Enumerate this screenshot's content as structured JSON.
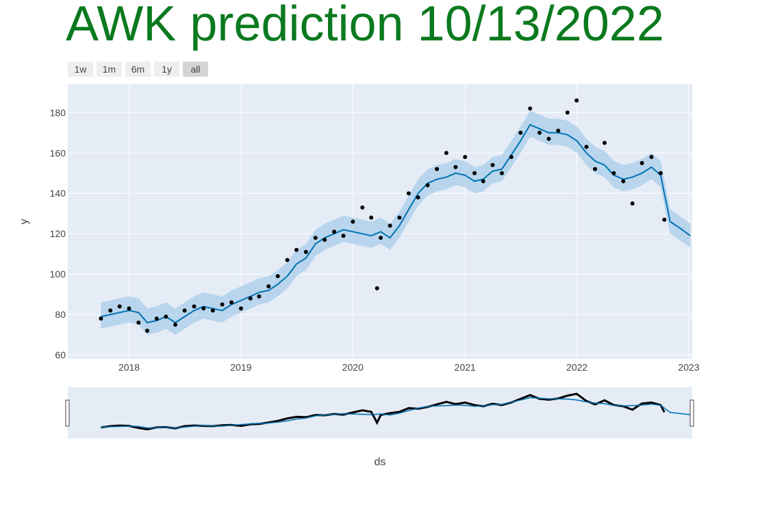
{
  "title": "AWK prediction 10/13/2022",
  "range_buttons": [
    "1w",
    "1m",
    "6m",
    "1y",
    "all"
  ],
  "active_range": "all",
  "chart_data": {
    "type": "line",
    "xlabel": "ds",
    "ylabel": "y",
    "ylim": [
      58,
      194
    ],
    "xlim": [
      "2017-06-15",
      "2023-01-12"
    ],
    "x_ticks": [
      "2018",
      "2019",
      "2020",
      "2021",
      "2022",
      "2023"
    ],
    "y_ticks": [
      60,
      80,
      100,
      120,
      140,
      160,
      180
    ],
    "grid": true,
    "legend": "none",
    "colors": {
      "actual": "#000000",
      "forecast": "#0072B2",
      "band": "#a8cdea",
      "plot_bg": "#e5ecf6"
    },
    "series": [
      {
        "role": "forecast",
        "x": [
          "2017-10-01",
          "2017-11-01",
          "2017-12-01",
          "2018-01-01",
          "2018-02-01",
          "2018-03-01",
          "2018-04-01",
          "2018-05-01",
          "2018-06-01",
          "2018-07-01",
          "2018-08-01",
          "2018-09-01",
          "2018-10-01",
          "2018-11-01",
          "2018-12-01",
          "2019-01-01",
          "2019-02-01",
          "2019-03-01",
          "2019-04-01",
          "2019-05-01",
          "2019-06-01",
          "2019-07-01",
          "2019-08-01",
          "2019-09-01",
          "2019-10-01",
          "2019-11-01",
          "2019-12-01",
          "2020-01-01",
          "2020-02-01",
          "2020-03-01",
          "2020-04-01",
          "2020-05-01",
          "2020-06-01",
          "2020-07-01",
          "2020-08-01",
          "2020-09-01",
          "2020-10-01",
          "2020-11-01",
          "2020-12-01",
          "2021-01-01",
          "2021-02-01",
          "2021-03-01",
          "2021-04-01",
          "2021-05-01",
          "2021-06-01",
          "2021-07-01",
          "2021-08-01",
          "2021-09-01",
          "2021-10-01",
          "2021-11-01",
          "2021-12-01",
          "2022-01-01",
          "2022-02-01",
          "2022-03-01",
          "2022-04-01",
          "2022-05-01",
          "2022-06-01",
          "2022-07-01",
          "2022-08-01",
          "2022-09-01",
          "2022-10-01",
          "2022-10-13",
          "2022-11-01",
          "2022-12-01",
          "2023-01-06"
        ],
        "y": [
          79,
          80,
          81,
          82,
          81,
          76,
          77,
          79,
          76,
          79,
          82,
          84,
          83,
          82,
          85,
          87,
          89,
          91,
          92,
          95,
          99,
          105,
          108,
          115,
          118,
          120,
          122,
          121,
          120,
          119,
          121,
          118,
          124,
          132,
          140,
          145,
          147,
          148,
          150,
          149,
          146,
          147,
          151,
          152,
          159,
          166,
          174,
          172,
          170,
          170,
          169,
          166,
          160,
          156,
          154,
          149,
          147,
          148,
          150,
          153,
          149,
          140,
          126,
          123,
          119
        ],
        "lower": [
          73,
          74,
          75,
          76,
          75,
          70,
          71,
          73,
          70,
          73,
          76,
          78,
          77,
          76,
          79,
          81,
          83,
          85,
          86,
          89,
          93,
          99,
          102,
          109,
          112,
          114,
          116,
          115,
          114,
          113,
          115,
          112,
          118,
          126,
          134,
          139,
          141,
          142,
          144,
          143,
          140,
          141,
          145,
          146,
          153,
          160,
          168,
          166,
          164,
          164,
          163,
          160,
          154,
          150,
          148,
          143,
          141,
          142,
          144,
          147,
          143,
          134,
          120,
          117,
          113
        ],
        "upper": [
          86,
          87,
          88,
          89,
          88,
          83,
          84,
          86,
          83,
          86,
          89,
          91,
          90,
          89,
          92,
          94,
          96,
          98,
          99,
          102,
          106,
          112,
          115,
          122,
          125,
          127,
          129,
          128,
          127,
          126,
          128,
          125,
          131,
          139,
          147,
          152,
          154,
          155,
          157,
          156,
          153,
          154,
          158,
          159,
          166,
          173,
          181,
          179,
          177,
          177,
          176,
          173,
          167,
          163,
          161,
          156,
          154,
          155,
          157,
          160,
          156,
          147,
          132,
          129,
          125
        ]
      },
      {
        "role": "actual",
        "x": [
          "2017-10-01",
          "2017-11-01",
          "2017-12-01",
          "2018-01-01",
          "2018-02-01",
          "2018-03-01",
          "2018-04-01",
          "2018-05-01",
          "2018-06-01",
          "2018-07-01",
          "2018-08-01",
          "2018-09-01",
          "2018-10-01",
          "2018-11-01",
          "2018-12-01",
          "2019-01-01",
          "2019-02-01",
          "2019-03-01",
          "2019-04-01",
          "2019-05-01",
          "2019-06-01",
          "2019-07-01",
          "2019-08-01",
          "2019-09-01",
          "2019-10-01",
          "2019-11-01",
          "2019-12-01",
          "2020-01-01",
          "2020-02-01",
          "2020-03-01",
          "2020-03-20",
          "2020-04-01",
          "2020-05-01",
          "2020-06-01",
          "2020-07-01",
          "2020-08-01",
          "2020-09-01",
          "2020-10-01",
          "2020-11-01",
          "2020-12-01",
          "2021-01-01",
          "2021-02-01",
          "2021-03-01",
          "2021-04-01",
          "2021-05-01",
          "2021-06-01",
          "2021-07-01",
          "2021-08-01",
          "2021-09-01",
          "2021-10-01",
          "2021-11-01",
          "2021-12-01",
          "2021-12-31",
          "2022-02-01",
          "2022-03-01",
          "2022-04-01",
          "2022-05-01",
          "2022-06-01",
          "2022-07-01",
          "2022-08-01",
          "2022-09-01",
          "2022-10-01",
          "2022-10-13"
        ],
        "y": [
          78,
          82,
          84,
          83,
          76,
          72,
          78,
          79,
          75,
          82,
          84,
          83,
          82,
          85,
          86,
          83,
          88,
          89,
          94,
          99,
          107,
          112,
          111,
          118,
          117,
          121,
          119,
          126,
          133,
          128,
          93,
          118,
          124,
          128,
          140,
          138,
          144,
          152,
          160,
          153,
          158,
          150,
          146,
          154,
          150,
          158,
          170,
          182,
          170,
          167,
          171,
          180,
          186,
          163,
          152,
          165,
          150,
          146,
          135,
          155,
          158,
          150,
          127
        ]
      }
    ]
  }
}
